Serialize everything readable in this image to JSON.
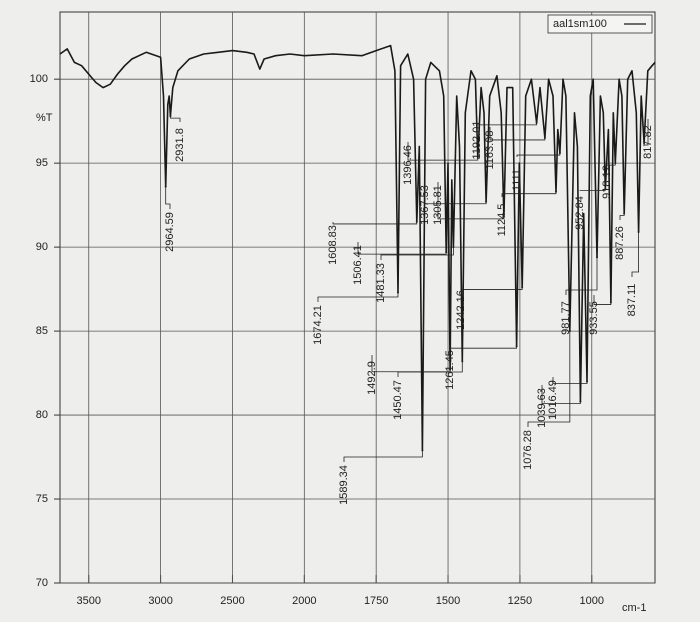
{
  "chart_data": {
    "type": "line",
    "ylabel": "%T",
    "xlabel": "cm-1",
    "xlim": [
      3700,
      780
    ],
    "xscale_break": 2000,
    "xticks": [
      3500,
      3000,
      2500,
      2000,
      1750,
      1500,
      1250,
      1000
    ],
    "ylim": [
      70,
      104
    ],
    "yticks": [
      70,
      75,
      80,
      85,
      90,
      95,
      100
    ],
    "grid": true,
    "legend": "top-right",
    "series": [
      {
        "name": "aal1sm100",
        "color": "#1a1a1a",
        "x": [
          3700,
          3650,
          3600,
          3550,
          3500,
          3450,
          3400,
          3350,
          3300,
          3250,
          3200,
          3100,
          3000,
          2980,
          2964.59,
          2950,
          2940,
          2931.8,
          2915,
          2880,
          2800,
          2700,
          2600,
          2500,
          2400,
          2350,
          2310,
          2280,
          2200,
          2100,
          2000,
          1900,
          1800,
          1750,
          1700,
          1685,
          1674.21,
          1665,
          1640,
          1620,
          1608.83,
          1600,
          1589.34,
          1578,
          1560,
          1530,
          1515,
          1506.41,
          1500,
          1492.9,
          1487,
          1481.33,
          1470,
          1460,
          1450.47,
          1440,
          1420,
          1405,
          1396.46,
          1385,
          1375,
          1367.53,
          1355,
          1330,
          1315,
          1305.81,
          1295,
          1275,
          1261.45,
          1252,
          1242.16,
          1230,
          1210,
          1192.01,
          1180,
          1163.08,
          1150,
          1135,
          1124.5,
          1118,
          1111.0,
          1100,
          1090,
          1076.28,
          1060,
          1050,
          1039.63,
          1028,
          1016.49,
          1005,
          995,
          981.77,
          970,
          960,
          952.84,
          942,
          933.55,
          925,
          918.12,
          905,
          895,
          887.26,
          875,
          860,
          845,
          837.11,
          828,
          817.82,
          805,
          790,
          780
        ],
        "values": [
          101.5,
          101.8,
          101,
          100.8,
          100.3,
          99.8,
          99.5,
          99.7,
          100.3,
          100.8,
          101.2,
          101.6,
          101.3,
          99,
          93.6,
          98.5,
          99,
          97.8,
          99.5,
          100.5,
          101.2,
          101.5,
          101.6,
          101.7,
          101.6,
          101.5,
          100.6,
          101.2,
          101.4,
          101.5,
          101.4,
          101.5,
          101.4,
          101.7,
          102,
          100.5,
          87.3,
          100.8,
          101.5,
          100,
          91.5,
          96,
          77.9,
          100,
          101,
          100.5,
          99,
          89.7,
          95,
          82.7,
          94,
          90,
          99,
          96,
          83.2,
          98,
          100.5,
          100,
          95.3,
          99.5,
          98,
          92.7,
          99,
          100.2,
          98,
          91.8,
          99.5,
          99.5,
          84.1,
          95,
          87.6,
          99,
          100,
          97.4,
          99.5,
          96.5,
          100,
          99,
          93.3,
          97,
          95.6,
          100,
          99,
          85,
          98,
          96,
          80.8,
          92,
          82,
          99,
          100,
          89.4,
          99,
          98,
          93.5,
          97,
          86.7,
          98,
          95,
          100,
          99,
          92,
          100,
          100.5,
          98,
          90.9,
          99,
          96.2,
          100.5,
          100.8,
          101
        ]
      }
    ],
    "peaks": {
      "x": [
        2964.59,
        2931.8,
        1674.21,
        1608.83,
        1589.34,
        1506.41,
        1492.9,
        1481.33,
        1450.47,
        1396.46,
        1367.53,
        1305.81,
        1261.45,
        1242.16,
        1192.01,
        1163.08,
        1124.5,
        1111.0,
        1076.28,
        1039.63,
        1016.49,
        981.77,
        952.84,
        933.55,
        918.12,
        887.26,
        837.11,
        817.82
      ],
      "y": [
        93.6,
        97.8,
        87.3,
        91.5,
        77.9,
        89.7,
        82.7,
        90,
        83.2,
        95.3,
        92.7,
        91.8,
        84.1,
        87.6,
        97.4,
        96.5,
        93.3,
        95.6,
        85,
        80.8,
        82,
        89.4,
        93.5,
        86.7,
        95,
        92,
        90.9,
        96.2
      ]
    }
  }
}
